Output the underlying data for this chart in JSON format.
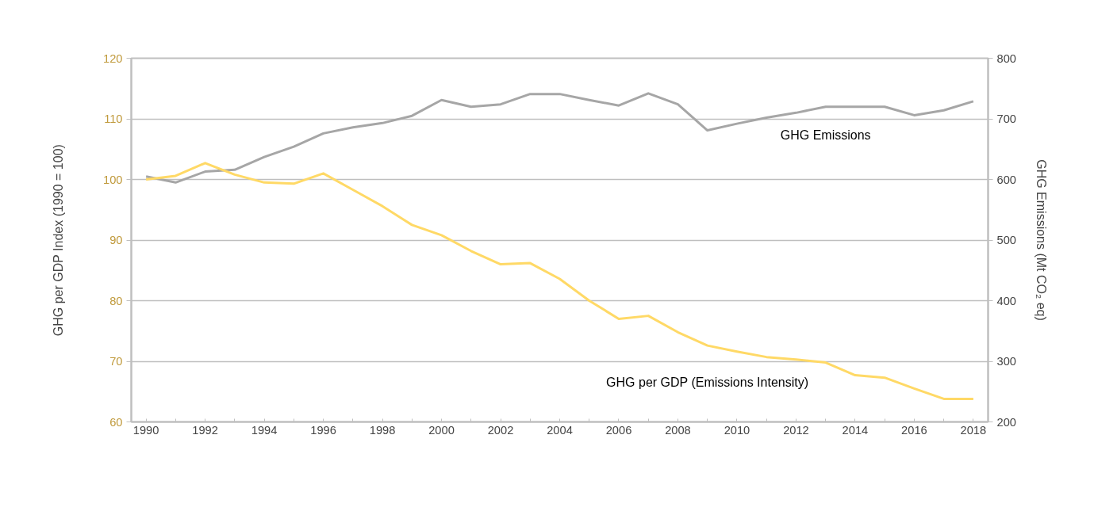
{
  "chart_data": {
    "type": "line",
    "ylabel": "GHG per GDP Index (1990 = 100)",
    "y2label": "GHG Emissions (Mt CO₂ eq)",
    "x": [
      1990,
      1991,
      1992,
      1993,
      1994,
      1995,
      1996,
      1997,
      1998,
      1999,
      2000,
      2001,
      2002,
      2003,
      2004,
      2005,
      2006,
      2007,
      2008,
      2009,
      2010,
      2011,
      2012,
      2013,
      2014,
      2015,
      2016,
      2017,
      2018
    ],
    "series": [
      {
        "name": "GHG Emissions",
        "color": "#a6a6a6",
        "axis": "y2",
        "values": [
          605,
          595,
          613,
          616,
          637,
          654,
          676,
          686,
          693,
          705,
          731,
          720,
          724,
          741,
          741,
          731,
          722,
          742,
          724,
          681,
          692,
          702,
          710,
          720,
          720,
          720,
          706,
          714,
          729
        ]
      },
      {
        "name": "GHG per GDP (Emissions Intensity)",
        "color": "#ffd966",
        "values": [
          100,
          100.6,
          102.7,
          100.8,
          99.5,
          99.3,
          101,
          98.3,
          95.6,
          92.5,
          90.8,
          88.2,
          86,
          86.2,
          83.6,
          80,
          77,
          77.5,
          74.8,
          72.6,
          71.6,
          70.7,
          70.3,
          69.8,
          67.7,
          67.3,
          65.5,
          63.8,
          63.8
        ]
      }
    ],
    "xlim": [
      1989.5,
      2018.5
    ],
    "xticks": [
      1990,
      {
        "value": 1991,
        "label": null
      },
      1992,
      {
        "value": 1993,
        "label": null
      },
      1994,
      {
        "value": 1995,
        "label": null
      },
      1996,
      {
        "value": 1997,
        "label": null
      },
      1998,
      {
        "value": 1999,
        "label": null
      },
      2000,
      {
        "value": 2001,
        "label": null
      },
      2002,
      {
        "value": 2003,
        "label": null
      },
      2004,
      {
        "value": 2005,
        "label": null
      },
      2006,
      {
        "value": 2007,
        "label": null
      },
      2008,
      {
        "value": 2009,
        "label": null
      },
      2010,
      {
        "value": 2011,
        "label": null
      },
      2012,
      {
        "value": 2013,
        "label": null
      },
      2014,
      {
        "value": 2015,
        "label": null
      },
      2016,
      {
        "value": 2017,
        "label": null
      },
      2018
    ],
    "ylim": [
      60,
      120
    ],
    "yticks": [
      60,
      70,
      80,
      90,
      100,
      110,
      120
    ],
    "y2lim": [
      200,
      800
    ],
    "y2ticks": [
      200,
      300,
      400,
      500,
      600,
      700,
      800
    ],
    "grid": "y",
    "legend": false,
    "marker": "none",
    "line_style": "solid"
  }
}
